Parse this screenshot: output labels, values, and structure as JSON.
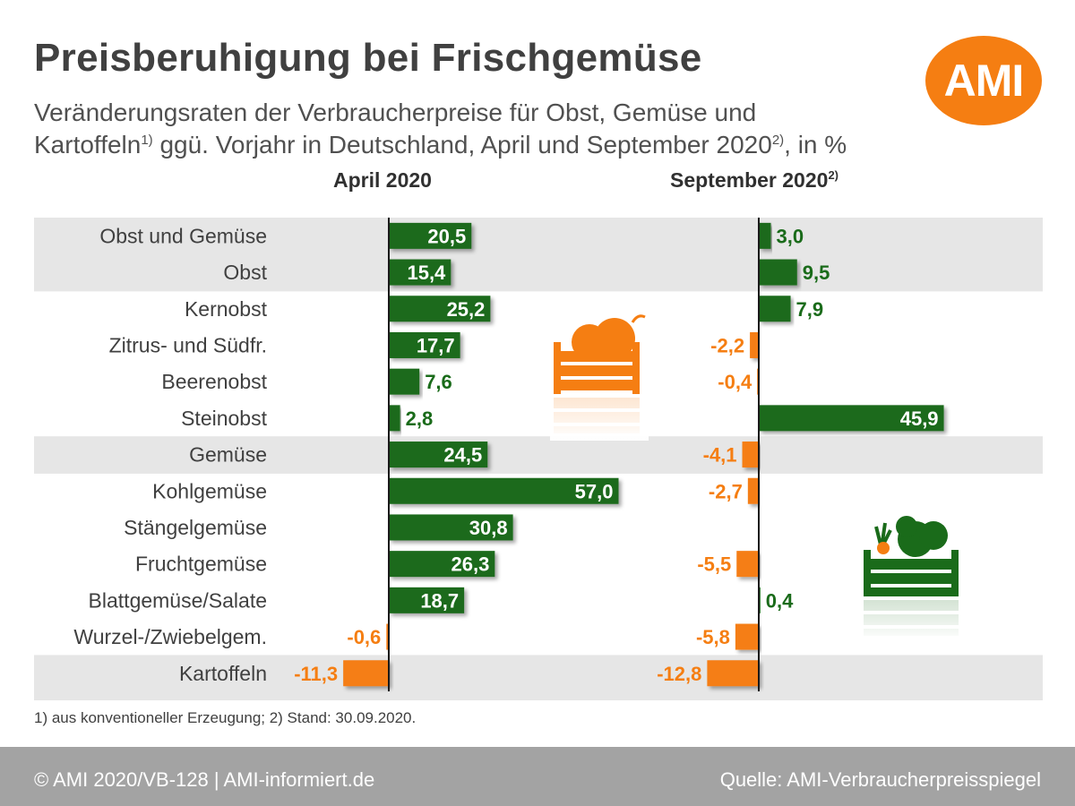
{
  "title": "Preisberuhigung bei Frischgemüse",
  "subtitle": {
    "line1": "Veränderungsraten der Verbraucherpreise für Obst, Gemüse und",
    "line2_a": "Kartoffeln",
    "line2_sup": "1)",
    "line2_b": " ggü. Vorjahr in Deutschland, April und September 2020",
    "line2_sup2": "2)",
    "line2_c": ", in %"
  },
  "logo": "AMI",
  "colors": {
    "positive": "#1a6b1a",
    "negative": "#f57e12",
    "band": "#e6e6e6",
    "footer": "#a3a3a3"
  },
  "icons": [
    "fruit-crate-icon",
    "vegetable-crate-icon"
  ],
  "chart_data": {
    "type": "bar",
    "orientation": "horizontal",
    "categories": [
      "Obst und Gemüse",
      "Obst",
      "Kernobst",
      "Zitrus- und Südfr.",
      "Beerenobst",
      "Steinobst",
      "Gemüse",
      "Kohlgemüse",
      "Stängelgemüse",
      "Fruchtgemüse",
      "Blattgemüse/Salate",
      "Wurzel-/Zwiebelgem.",
      "Kartoffeln"
    ],
    "series": [
      {
        "name": "April 2020",
        "sup": "",
        "values": [
          20.5,
          15.4,
          25.2,
          17.7,
          7.6,
          2.8,
          24.5,
          57.0,
          30.8,
          26.3,
          18.7,
          -0.6,
          -11.3
        ],
        "labels": [
          "20,5",
          "15,4",
          "25,2",
          "17,7",
          "7,6",
          "2,8",
          "24,5",
          "57,0",
          "30,8",
          "26,3",
          "18,7",
          "-0,6",
          "-11,3"
        ]
      },
      {
        "name": "September 2020",
        "sup": "2)",
        "values": [
          3.0,
          9.5,
          7.9,
          -2.2,
          -0.4,
          45.9,
          -4.1,
          -2.7,
          0,
          -5.5,
          0.4,
          -5.8,
          -12.8
        ],
        "labels": [
          "3,0",
          "9,5",
          "7,9",
          "-2,2",
          "-0,4",
          "45,9",
          "-4,1",
          "-2,7",
          "",
          "-5,5",
          "0,4",
          "-5,8",
          "-12,8"
        ]
      }
    ],
    "highlighted_rows": [
      0,
      1,
      6,
      12
    ],
    "grid": false
  },
  "footnote": "1) aus konventioneller Erzeugung; 2) Stand: 30.09.2020.",
  "footer": {
    "left": "© AMI 2020/VB-128 | AMI-informiert.de",
    "right": "Quelle: AMI-Verbraucherpreisspiegel"
  }
}
